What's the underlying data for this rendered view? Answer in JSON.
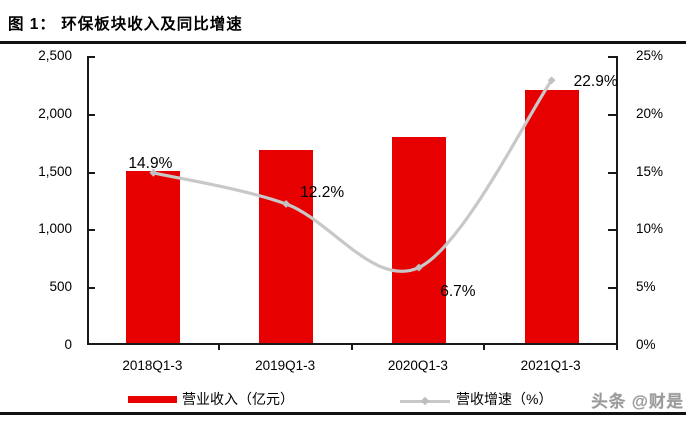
{
  "title": "图 1： 环保板块收入及同比增速",
  "watermark": "头条 @财是",
  "legend": {
    "bar_label": "营业收入（亿元）",
    "line_label": "营收增速（%）"
  },
  "colors": {
    "bar": "#e60000",
    "line": "#c8c8c8",
    "marker": "#c2c2c2",
    "axis": "#1a1a1a",
    "rule": "#111111"
  },
  "chart_data": {
    "type": "bar",
    "subtype": "bar-line-combo",
    "categories": [
      "2018Q1-3",
      "2019Q1-3",
      "2020Q1-3",
      "2021Q1-3"
    ],
    "series": [
      {
        "name": "营业收入（亿元）",
        "type": "bar",
        "axis": "left",
        "values": [
          1486,
          1667,
          1779,
          2186
        ],
        "color": "#e60000"
      },
      {
        "name": "营收增速（%）",
        "type": "line",
        "axis": "right",
        "smooth": true,
        "values": [
          14.9,
          12.2,
          6.7,
          22.9
        ],
        "data_labels": [
          "14.9%",
          "12.2%",
          "6.7%",
          "22.9%"
        ],
        "color": "#c8c8c8"
      }
    ],
    "left_axis": {
      "min": 0,
      "max": 2500,
      "ticks": [
        "2,500",
        "2,000",
        "1,500",
        "1,000",
        "500",
        "0"
      ]
    },
    "right_axis": {
      "min": 0,
      "max": 25,
      "ticks": [
        "25%",
        "20%",
        "15%",
        "10%",
        "5%",
        "0%"
      ]
    },
    "grid": false,
    "legend_position": "bottom"
  }
}
